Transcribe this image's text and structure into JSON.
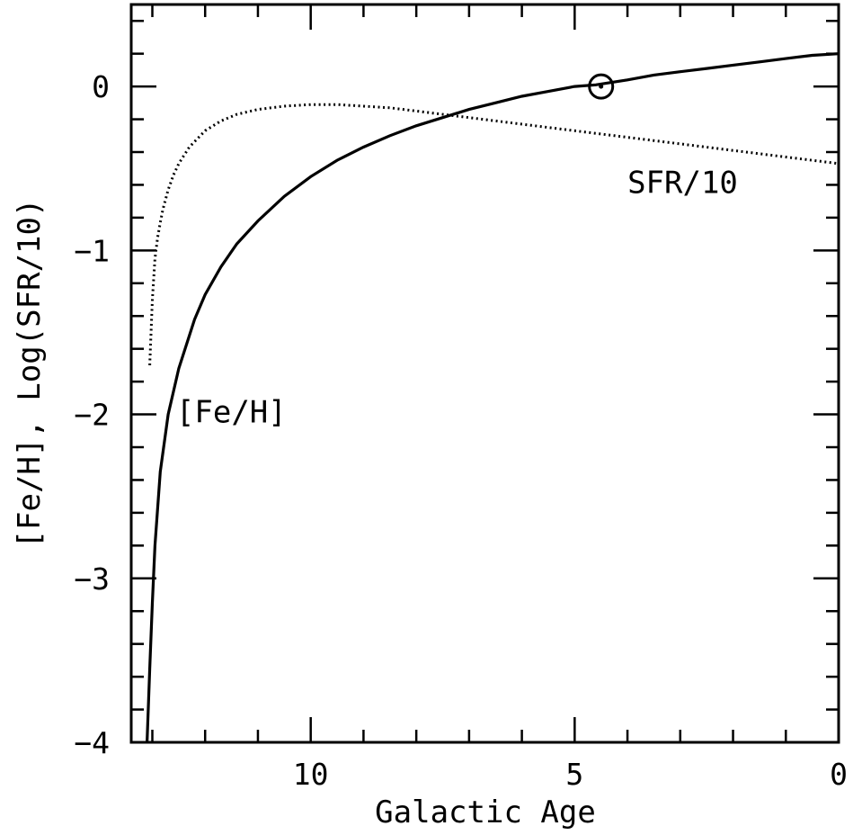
{
  "chart_data": {
    "type": "line",
    "title": "",
    "xlabel": "Galactic Age",
    "ylabel": "[Fe/H], Log(SFR/10)",
    "xlim": [
      13.4,
      0
    ],
    "ylim": [
      -4,
      0.5
    ],
    "x_major_ticks": [
      10,
      5,
      0
    ],
    "x_minor_step": 1,
    "y_major_ticks": [
      0,
      -1,
      -2,
      -3,
      -4
    ],
    "y_minor_step": 0.2,
    "x_tick_labels": [
      "10",
      "5",
      "0"
    ],
    "y_tick_labels": [
      "0",
      "−1",
      "−2",
      "−3",
      "−4"
    ],
    "grid": false,
    "series": [
      {
        "name": "[Fe/H]",
        "style": "solid",
        "color": "#000000",
        "x": [
          13.1,
          13.05,
          13.0,
          12.95,
          12.85,
          12.7,
          12.5,
          12.2,
          12.0,
          11.7,
          11.4,
          11.0,
          10.5,
          10.0,
          9.5,
          9.0,
          8.5,
          8.0,
          7.5,
          7.0,
          6.5,
          6.0,
          5.5,
          5.0,
          4.6,
          4.0,
          3.5,
          3.0,
          2.5,
          2.0,
          1.5,
          1.0,
          0.5,
          0.0
        ],
        "y": [
          -4.0,
          -3.55,
          -3.15,
          -2.8,
          -2.35,
          -2.0,
          -1.72,
          -1.42,
          -1.27,
          -1.1,
          -0.96,
          -0.82,
          -0.67,
          -0.55,
          -0.45,
          -0.37,
          -0.3,
          -0.24,
          -0.19,
          -0.14,
          -0.1,
          -0.06,
          -0.03,
          0.0,
          0.01,
          0.04,
          0.07,
          0.09,
          0.11,
          0.13,
          0.15,
          0.17,
          0.19,
          0.2
        ]
      },
      {
        "name": "SFR/10",
        "style": "dotted",
        "color": "#000000",
        "x": [
          13.05,
          13.0,
          12.95,
          12.9,
          12.85,
          12.8,
          12.7,
          12.6,
          12.5,
          12.3,
          12.0,
          11.7,
          11.4,
          11.0,
          10.5,
          10.0,
          9.5,
          9.0,
          8.5,
          8.0,
          7.0,
          6.0,
          5.0,
          4.0,
          3.0,
          2.0,
          1.0,
          0.0
        ],
        "y": [
          -1.7,
          -1.3,
          -1.05,
          -0.92,
          -0.83,
          -0.75,
          -0.63,
          -0.54,
          -0.47,
          -0.37,
          -0.27,
          -0.21,
          -0.17,
          -0.14,
          -0.12,
          -0.11,
          -0.11,
          -0.12,
          -0.13,
          -0.15,
          -0.19,
          -0.23,
          -0.27,
          -0.31,
          -0.35,
          -0.39,
          -0.43,
          -0.47
        ]
      }
    ],
    "annotations": [
      {
        "text": "SFR/10",
        "x": 4.0,
        "y": -0.65
      },
      {
        "text": "[Fe/H]",
        "x": 12.55,
        "y": -2.05
      }
    ],
    "marker": {
      "symbol": "sun",
      "x": 4.5,
      "y": 0.0
    }
  }
}
